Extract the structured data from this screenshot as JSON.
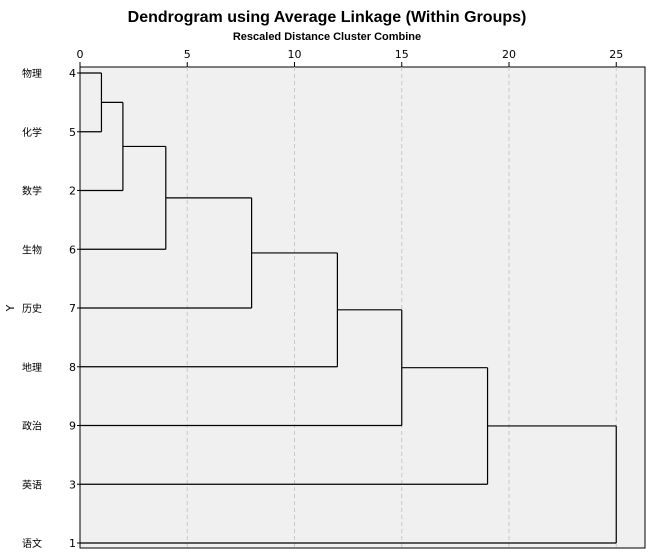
{
  "chart_data": {
    "type": "dendrogram",
    "title": "Dendrogram using Average Linkage (Within Groups)",
    "xlabel": "Rescaled Distance Cluster Combine",
    "ylabel": "Y",
    "xlim": [
      0,
      25
    ],
    "x_ticks": [
      0,
      5,
      10,
      15,
      20,
      25
    ],
    "grid": true,
    "leaves": [
      {
        "label": "物理",
        "case": "4"
      },
      {
        "label": "化学",
        "case": "5"
      },
      {
        "label": "数学",
        "case": "2"
      },
      {
        "label": "生物",
        "case": "6"
      },
      {
        "label": "历史",
        "case": "7"
      },
      {
        "label": "地理",
        "case": "8"
      },
      {
        "label": "政治",
        "case": "9"
      },
      {
        "label": "英语",
        "case": "3"
      },
      {
        "label": "语文",
        "case": "1"
      }
    ],
    "merges": [
      {
        "a": 0,
        "b": 1,
        "distance": 1
      },
      {
        "a": 9,
        "b": 2,
        "distance": 2
      },
      {
        "a": 10,
        "b": 3,
        "distance": 4
      },
      {
        "a": 11,
        "b": 4,
        "distance": 8
      },
      {
        "a": 12,
        "b": 5,
        "distance": 12
      },
      {
        "a": 13,
        "b": 6,
        "distance": 15
      },
      {
        "a": 14,
        "b": 7,
        "distance": 19
      },
      {
        "a": 15,
        "b": 8,
        "distance": 25
      }
    ],
    "colors": {
      "plot_background": "#f0f0f0",
      "grid": "#c8c8c8",
      "line": "#000000"
    }
  }
}
